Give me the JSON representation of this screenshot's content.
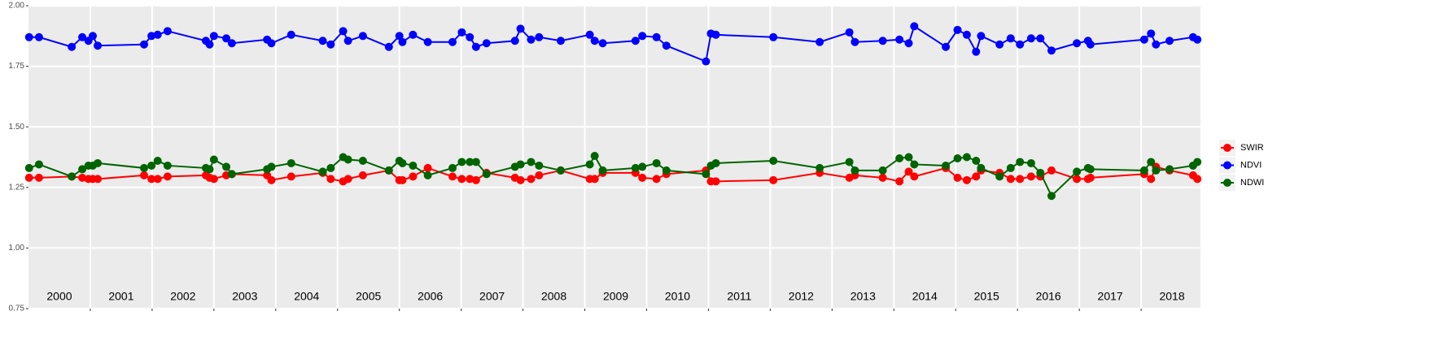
{
  "chart_data": {
    "type": "line",
    "x": [
      2000.01,
      2000.17,
      2000.7,
      2000.87,
      2000.97,
      2001.04,
      2001.12,
      2001.87,
      2001.99,
      2002.09,
      2002.25,
      2002.87,
      2002.93,
      2003.0,
      2003.2,
      2003.29,
      2003.86,
      2003.93,
      2004.25,
      2004.76,
      2004.89,
      2005.09,
      2005.17,
      2005.41,
      2005.83,
      2006.0,
      2006.05,
      2006.22,
      2006.46,
      2006.86,
      2007.01,
      2007.14,
      2007.24,
      2007.41,
      2007.87,
      2007.96,
      2008.13,
      2008.26,
      2008.61,
      2009.08,
      2009.16,
      2009.29,
      2009.82,
      2009.93,
      2010.16,
      2010.32,
      2010.96,
      2011.04,
      2011.12,
      2012.05,
      2012.8,
      2013.28,
      2013.37,
      2013.82,
      2014.09,
      2014.24,
      2014.33,
      2014.84,
      2015.03,
      2015.18,
      2015.33,
      2015.41,
      2015.71,
      2015.89,
      2016.04,
      2016.22,
      2016.37,
      2016.55,
      2016.96,
      2017.14,
      2017.18,
      2018.05,
      2018.16,
      2018.24,
      2018.46,
      2018.84,
      2018.91
    ],
    "series": [
      {
        "name": "SWIR",
        "color": "#ff0000",
        "values": [
          1.29,
          1.29,
          1.295,
          1.29,
          1.285,
          1.285,
          1.285,
          1.3,
          1.285,
          1.285,
          1.295,
          1.3,
          1.29,
          1.285,
          1.3,
          1.305,
          1.3,
          1.28,
          1.295,
          1.31,
          1.285,
          1.275,
          1.285,
          1.3,
          1.32,
          1.28,
          1.28,
          1.295,
          1.33,
          1.295,
          1.285,
          1.285,
          1.28,
          1.31,
          1.29,
          1.28,
          1.285,
          1.3,
          1.32,
          1.285,
          1.285,
          1.31,
          1.31,
          1.29,
          1.285,
          1.305,
          1.32,
          1.275,
          1.275,
          1.28,
          1.31,
          1.29,
          1.3,
          1.29,
          1.275,
          1.315,
          1.295,
          1.33,
          1.29,
          1.28,
          1.295,
          1.32,
          1.31,
          1.285,
          1.285,
          1.295,
          1.295,
          1.32,
          1.285,
          1.285,
          1.29,
          1.305,
          1.285,
          1.335,
          1.32,
          1.3,
          1.285
        ]
      },
      {
        "name": "NDVI",
        "color": "#0000ff",
        "values": [
          1.87,
          1.87,
          1.83,
          1.87,
          1.855,
          1.875,
          1.835,
          1.84,
          1.875,
          1.88,
          1.895,
          1.855,
          1.84,
          1.875,
          1.865,
          1.845,
          1.86,
          1.845,
          1.88,
          1.855,
          1.84,
          1.895,
          1.855,
          1.875,
          1.83,
          1.875,
          1.85,
          1.88,
          1.85,
          1.85,
          1.89,
          1.87,
          1.83,
          1.845,
          1.855,
          1.905,
          1.86,
          1.87,
          1.855,
          1.88,
          1.855,
          1.845,
          1.855,
          1.875,
          1.87,
          1.835,
          1.77,
          1.885,
          1.88,
          1.87,
          1.85,
          1.89,
          1.85,
          1.855,
          1.86,
          1.845,
          1.915,
          1.83,
          1.9,
          1.88,
          1.81,
          1.875,
          1.84,
          1.865,
          1.84,
          1.865,
          1.865,
          1.815,
          1.845,
          1.855,
          1.84,
          1.86,
          1.885,
          1.84,
          1.855,
          1.87,
          1.86
        ]
      },
      {
        "name": "NDWI",
        "color": "#006400",
        "values": [
          1.33,
          1.345,
          1.295,
          1.325,
          1.34,
          1.34,
          1.35,
          1.33,
          1.34,
          1.36,
          1.34,
          1.33,
          1.325,
          1.365,
          1.335,
          1.305,
          1.325,
          1.335,
          1.35,
          1.315,
          1.33,
          1.375,
          1.365,
          1.36,
          1.32,
          1.36,
          1.35,
          1.34,
          1.3,
          1.33,
          1.355,
          1.355,
          1.355,
          1.305,
          1.335,
          1.345,
          1.355,
          1.34,
          1.32,
          1.345,
          1.38,
          1.32,
          1.33,
          1.335,
          1.35,
          1.32,
          1.305,
          1.34,
          1.35,
          1.36,
          1.33,
          1.355,
          1.32,
          1.32,
          1.37,
          1.375,
          1.345,
          1.34,
          1.37,
          1.375,
          1.36,
          1.33,
          1.295,
          1.33,
          1.355,
          1.35,
          1.31,
          1.215,
          1.315,
          1.33,
          1.325,
          1.32,
          1.355,
          1.32,
          1.325,
          1.34,
          1.355
        ]
      }
    ],
    "xlim": [
      2000,
      2018.96
    ],
    "ylim": [
      0.75,
      2.0
    ],
    "yticks": [
      {
        "value": 0.75,
        "label": "0.75"
      },
      {
        "value": 1.0,
        "label": "1.00"
      },
      {
        "value": 1.25,
        "label": "1.25"
      },
      {
        "value": 1.5,
        "label": "1.50"
      },
      {
        "value": 1.75,
        "label": "1.75"
      },
      {
        "value": 2.0,
        "label": "2.00"
      }
    ],
    "xticks": [
      {
        "value": 2000.5,
        "label": "2000"
      },
      {
        "value": 2001.5,
        "label": "2001"
      },
      {
        "value": 2002.5,
        "label": "2002"
      },
      {
        "value": 2003.5,
        "label": "2003"
      },
      {
        "value": 2004.5,
        "label": "2004"
      },
      {
        "value": 2005.5,
        "label": "2005"
      },
      {
        "value": 2006.5,
        "label": "2006"
      },
      {
        "value": 2007.5,
        "label": "2007"
      },
      {
        "value": 2008.5,
        "label": "2008"
      },
      {
        "value": 2009.5,
        "label": "2009"
      },
      {
        "value": 2010.5,
        "label": "2010"
      },
      {
        "value": 2011.5,
        "label": "2011"
      },
      {
        "value": 2012.5,
        "label": "2012"
      },
      {
        "value": 2013.5,
        "label": "2013"
      },
      {
        "value": 2014.5,
        "label": "2014"
      },
      {
        "value": 2015.5,
        "label": "2015"
      },
      {
        "value": 2016.5,
        "label": "2016"
      },
      {
        "value": 2017.5,
        "label": "2017"
      },
      {
        "value": 2018.5,
        "label": "2018"
      }
    ],
    "xgrid": [
      2001,
      2002,
      2003,
      2004,
      2005,
      2006,
      2007,
      2008,
      2009,
      2010,
      2011,
      2012,
      2013,
      2014,
      2015,
      2016,
      2017,
      2018
    ],
    "grid": true,
    "legend": "right"
  }
}
